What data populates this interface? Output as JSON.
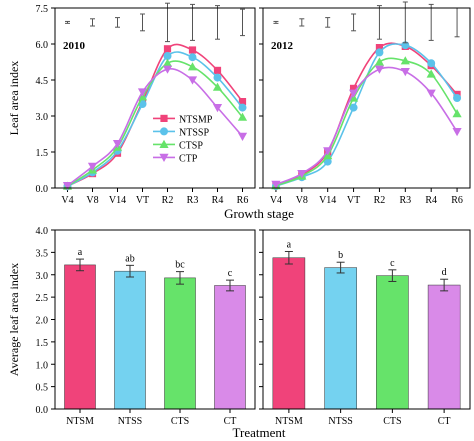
{
  "colors": {
    "NTSMP": "#f0437a",
    "NTSSP": "#5bc2ea",
    "CTSP": "#66e36a",
    "CTP": "#c86ee6",
    "NTSM": "#f0437a",
    "NTSS": "#74d2f0",
    "CTS": "#66e36a",
    "CT": "#d98ae8",
    "error": "#555555",
    "axis": "#000000"
  },
  "chart_data": [
    {
      "type": "line",
      "panel": "2010",
      "title": "2010",
      "ylabel": "Leaf area index",
      "xlabel": "",
      "ylim": [
        0,
        7.5
      ],
      "yticks": [
        "0.0",
        "1.5",
        "3.0",
        "4.5",
        "6.0",
        "7.5"
      ],
      "categories": [
        "V4",
        "V8",
        "V14",
        "VT",
        "R2",
        "R3",
        "R4",
        "R6"
      ],
      "error_bars": [
        0.04,
        0.15,
        0.2,
        0.35,
        0.8,
        0.75,
        0.7,
        0.55
      ],
      "legend_position": "center-right",
      "series": [
        {
          "name": "NTSMP",
          "marker": "square",
          "values": [
            0.08,
            0.6,
            1.45,
            3.6,
            5.8,
            5.75,
            4.9,
            3.6
          ]
        },
        {
          "name": "NTSSP",
          "marker": "circle",
          "values": [
            0.07,
            0.65,
            1.55,
            3.5,
            5.5,
            5.45,
            4.6,
            3.35
          ]
        },
        {
          "name": "CTSP",
          "marker": "triangle-up",
          "values": [
            0.08,
            0.75,
            1.7,
            3.8,
            5.2,
            5.05,
            4.2,
            2.95
          ]
        },
        {
          "name": "CTP",
          "marker": "triangle-down",
          "values": [
            0.1,
            0.9,
            1.85,
            4.0,
            4.95,
            4.5,
            3.35,
            2.15
          ]
        }
      ]
    },
    {
      "type": "line",
      "panel": "2012",
      "title": "2012",
      "ylabel": "",
      "xlabel": "",
      "ylim": [
        0,
        7.5
      ],
      "yticks": [
        "0.0",
        "1.5",
        "3.0",
        "4.5",
        "6.0",
        "7.5"
      ],
      "categories": [
        "V4",
        "V8",
        "V14",
        "VT",
        "R2",
        "R3",
        "R4",
        "R6"
      ],
      "error_bars": [
        0.04,
        0.15,
        0.2,
        0.35,
        0.7,
        0.85,
        0.75,
        0.6
      ],
      "series": [
        {
          "name": "NTSMP",
          "marker": "square",
          "values": [
            0.12,
            0.55,
            1.5,
            4.15,
            5.85,
            5.9,
            5.1,
            3.9
          ]
        },
        {
          "name": "NTSSP",
          "marker": "circle",
          "values": [
            0.08,
            0.45,
            1.1,
            3.35,
            5.65,
            5.95,
            5.2,
            3.75
          ]
        },
        {
          "name": "CTSP",
          "marker": "triangle-up",
          "values": [
            0.1,
            0.5,
            1.35,
            3.75,
            5.25,
            5.3,
            4.75,
            3.1
          ]
        },
        {
          "name": "CTP",
          "marker": "triangle-down",
          "values": [
            0.15,
            0.6,
            1.55,
            3.95,
            4.95,
            4.85,
            3.95,
            2.35
          ]
        }
      ]
    },
    {
      "type": "bar",
      "panel": "2010-average",
      "ylabel": "Average leaf area index",
      "xlabel": "",
      "ylim": [
        0,
        4.0
      ],
      "yticks": [
        "0.0",
        "0.5",
        "1.0",
        "1.5",
        "2.0",
        "2.5",
        "3.0",
        "3.5",
        "4.0"
      ],
      "categories": [
        "NTSM",
        "NTSS",
        "CTS",
        "CT"
      ],
      "values": [
        3.22,
        3.08,
        2.93,
        2.76
      ],
      "errors": [
        0.13,
        0.13,
        0.14,
        0.12
      ],
      "letters": [
        "a",
        "ab",
        "bc",
        "c"
      ]
    },
    {
      "type": "bar",
      "panel": "2012-average",
      "ylabel": "",
      "xlabel": "",
      "ylim": [
        0,
        4.0
      ],
      "categories": [
        "NTSM",
        "NTSS",
        "CTS",
        "CT"
      ],
      "values": [
        3.38,
        3.16,
        2.98,
        2.77
      ],
      "errors": [
        0.14,
        0.12,
        0.13,
        0.13
      ],
      "letters": [
        "a",
        "b",
        "c",
        "d"
      ]
    }
  ],
  "shared_labels": {
    "top_xlabel": "Growth stage",
    "bottom_xlabel": "Treatment"
  }
}
